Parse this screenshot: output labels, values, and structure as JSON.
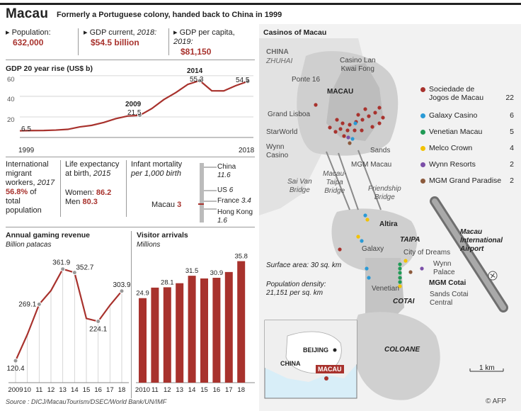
{
  "header": {
    "title": "Macau",
    "subtitle": "Formerly a Portuguese colony, handed back to China in 1999"
  },
  "stats": {
    "population": {
      "label": "Population:",
      "value": "632,000"
    },
    "gdp": {
      "label_prefix": "GDP current,",
      "label_year": "2018:",
      "value": "$54.5 billion"
    },
    "gdp_per_capita": {
      "label_prefix": "GDP per capita,",
      "label_year": "2019:",
      "value": "$81,150"
    }
  },
  "gdp_rise": {
    "title": "GDP 20 year rise (US$ b)",
    "start_label": "6.5",
    "label_2009": "2009",
    "value_2009": "21.5",
    "label_2014": "2014",
    "value_2014": "55.3",
    "end_label": "54.5",
    "year_start": "1999",
    "year_end": "2018"
  },
  "migrants": {
    "line1": "International",
    "line2": "migrant",
    "line3_prefix": "workers,",
    "line3_year": "2017",
    "percent": "56.8%",
    "line4_suffix": " of",
    "line5": "total",
    "line6": "population"
  },
  "life": {
    "title_line1": "Life expectancy",
    "title_line2_prefix": "at birth,",
    "title_line2_year": "2015",
    "women_label": "Women:",
    "women_value": "86.2",
    "men_label": "Men",
    "men_value": "80.3"
  },
  "infant": {
    "title": "Infant mortality",
    "subtitle": "per 1,000 birth",
    "entries": [
      {
        "name": "China",
        "value": "11.6"
      },
      {
        "name": "US",
        "value": "6"
      },
      {
        "name": "France",
        "value": "3.4"
      },
      {
        "name": "Hong Kong",
        "value": "1.6"
      }
    ],
    "macau_label": "Macau",
    "macau_value": "3"
  },
  "gaming": {
    "title": "Annual gaming revenue",
    "subtitle": "Billion patacas"
  },
  "visitors": {
    "title": "Visitor arrivals",
    "subtitle": "Millions"
  },
  "source": "Source : DICJ/MacauTourism/DSEC/World Bank/UN/IMF",
  "map": {
    "title": "Casinos of Macau",
    "labels": {
      "china": "CHINA",
      "zhuhai": "ZHUHAI",
      "macau": "MACAU",
      "taipa": "TAIPA",
      "cotai": "COTAI",
      "coloane": "COLOANE",
      "airport_line1": "Macau",
      "airport_line2": "International",
      "airport_line3": "Airport",
      "sai_van_1": "Sai Van",
      "sai_van_2": "Bridge",
      "macau_taipa_1": "Macau-",
      "macau_taipa_2": "Taipa",
      "macau_taipa_3": "Bridge",
      "friendship_1": "Friendship",
      "friendship_2": "Bridge",
      "ponte16": "Ponte 16",
      "lan_kwai_1": "Casino Lan",
      "lan_kwai_2": "Kwai Fong",
      "grand_lisboa": "Grand Lisboa",
      "starworld": "StarWorld",
      "wynn_casino_1": "Wynn",
      "wynn_casino_2": "Casino",
      "sands": "Sands",
      "mgm_macau": "MGM Macau",
      "altira": "Altira",
      "galaxy": "Galaxy",
      "city_of_dreams": "City of Dreams",
      "wynn_palace_1": "Wynn",
      "wynn_palace_2": "Palace",
      "mgm_cotai": "MGM Cotai",
      "venetian": "Venetian",
      "sands_cotai_1": "Sands Cotai",
      "sands_cotai_2": "Central",
      "surface": "Surface area: 30 sq. km",
      "density_1": "Population density:",
      "density_2": "21,151 per sq. km",
      "scale": "1 km",
      "inset_beijing": "BEIJING",
      "inset_china": "CHINA",
      "inset_macau": "MACAU",
      "afp": "© AFP"
    },
    "legend": [
      {
        "name_line1": "Sociedade de",
        "name_line2": "Jogos de Macau",
        "count": "22",
        "color": "#a8322d"
      },
      {
        "name_line1": "Galaxy Casino",
        "name_line2": "",
        "count": "6",
        "color": "#2a9ad6"
      },
      {
        "name_line1": "Venetian Macau",
        "name_line2": "",
        "count": "5",
        "color": "#1f9a55"
      },
      {
        "name_line1": "Melco Crown",
        "name_line2": "",
        "count": "4",
        "color": "#f2c200"
      },
      {
        "name_line1": "Wynn Resorts",
        "name_line2": "",
        "count": "2",
        "color": "#7b4fa8"
      },
      {
        "name_line1": "MGM Grand Paradise",
        "name_line2": "",
        "count": "2",
        "color": "#8c5a3c"
      }
    ]
  },
  "chart_data": [
    {
      "type": "line",
      "title": "GDP 20 year rise (US$ b)",
      "x": [
        1999,
        2000,
        2001,
        2002,
        2003,
        2004,
        2005,
        2006,
        2007,
        2008,
        2009,
        2010,
        2011,
        2012,
        2013,
        2014,
        2015,
        2016,
        2017,
        2018
      ],
      "values": [
        6.5,
        6.7,
        6.8,
        7.2,
        7.9,
        10.3,
        11.8,
        14.6,
        18.3,
        20.9,
        21.5,
        28.1,
        36.8,
        43.6,
        51.6,
        55.3,
        45.4,
        45.3,
        50.4,
        54.5
      ],
      "y_ticks": [
        20,
        40,
        60
      ],
      "ylim": [
        0,
        62
      ]
    },
    {
      "type": "line",
      "title": "Annual gaming revenue",
      "subtitle": "Billion patacas",
      "categories": [
        "2009",
        "10",
        "11",
        "12",
        "13",
        "14",
        "15",
        "16",
        "17",
        "18"
      ],
      "values": [
        120.4,
        189.6,
        269.1,
        305.2,
        361.9,
        352.7,
        231.8,
        224.1,
        266.6,
        303.9
      ],
      "labeled": [
        0,
        2,
        4,
        5,
        7,
        9
      ],
      "ylim": [
        100,
        380
      ]
    },
    {
      "type": "bar",
      "title": "Visitor arrivals",
      "subtitle": "Millions",
      "categories": [
        "2010",
        "11",
        "12",
        "13",
        "14",
        "15",
        "16",
        "17",
        "18"
      ],
      "values": [
        24.9,
        28.0,
        28.1,
        29.3,
        31.5,
        30.7,
        30.9,
        32.6,
        35.8
      ],
      "labeled": [
        0,
        2,
        4,
        6,
        8
      ],
      "ylim": [
        0,
        38
      ],
      "bar_color": "#a8322d"
    }
  ]
}
